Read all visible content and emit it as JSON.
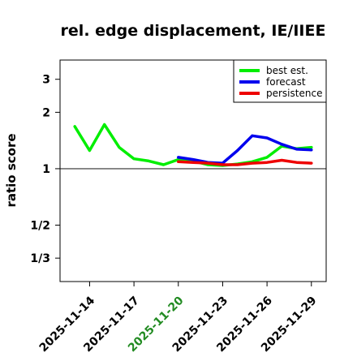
{
  "chart_data": {
    "type": "line",
    "title": "rel. edge displacement, IE/IIEE",
    "xlabel": "",
    "ylabel": "ratio score",
    "y_scale": "log",
    "yticks": [
      {
        "value": 0.3333,
        "label": "1/3"
      },
      {
        "value": 0.5,
        "label": "1/2"
      },
      {
        "value": 1,
        "label": "1"
      },
      {
        "value": 2,
        "label": "2"
      },
      {
        "value": 3,
        "label": "3"
      }
    ],
    "ylim": [
      0.25,
      3.8
    ],
    "xlim": [
      "2025-11-12",
      "2025-11-30"
    ],
    "xticks": [
      {
        "date": "2025-11-14",
        "label": "2025-11-14",
        "color": "#000000"
      },
      {
        "date": "2025-11-17",
        "label": "2025-11-17",
        "color": "#000000"
      },
      {
        "date": "2025-11-20",
        "label": "2025-11-20",
        "color": "#228B22"
      },
      {
        "date": "2025-11-23",
        "label": "2025-11-23",
        "color": "#000000"
      },
      {
        "date": "2025-11-26",
        "label": "2025-11-26",
        "color": "#000000"
      },
      {
        "date": "2025-11-29",
        "label": "2025-11-29",
        "color": "#000000"
      }
    ],
    "reference_line": 1,
    "grid": false,
    "legend_position": "top-right",
    "series": [
      {
        "name": "best est.",
        "color": "#00ee00",
        "points": [
          {
            "x": "2025-11-13",
            "y": 1.68
          },
          {
            "x": "2025-11-14",
            "y": 1.25
          },
          {
            "x": "2025-11-15",
            "y": 1.72
          },
          {
            "x": "2025-11-16",
            "y": 1.3
          },
          {
            "x": "2025-11-17",
            "y": 1.13
          },
          {
            "x": "2025-11-18",
            "y": 1.1
          },
          {
            "x": "2025-11-19",
            "y": 1.05
          },
          {
            "x": "2025-11-20",
            "y": 1.12
          },
          {
            "x": "2025-11-21",
            "y": 1.1
          },
          {
            "x": "2025-11-22",
            "y": 1.05
          },
          {
            "x": "2025-11-23",
            "y": 1.04
          },
          {
            "x": "2025-11-24",
            "y": 1.06
          },
          {
            "x": "2025-11-25",
            "y": 1.09
          },
          {
            "x": "2025-11-26",
            "y": 1.15
          },
          {
            "x": "2025-11-27",
            "y": 1.32
          },
          {
            "x": "2025-11-28",
            "y": 1.28
          },
          {
            "x": "2025-11-29",
            "y": 1.3
          }
        ]
      },
      {
        "name": "forecast",
        "color": "#0000ee",
        "points": [
          {
            "x": "2025-11-20",
            "y": 1.15
          },
          {
            "x": "2025-11-21",
            "y": 1.12
          },
          {
            "x": "2025-11-22",
            "y": 1.08
          },
          {
            "x": "2025-11-23",
            "y": 1.07
          },
          {
            "x": "2025-11-24",
            "y": 1.25
          },
          {
            "x": "2025-11-25",
            "y": 1.5
          },
          {
            "x": "2025-11-26",
            "y": 1.46
          },
          {
            "x": "2025-11-27",
            "y": 1.35
          },
          {
            "x": "2025-11-28",
            "y": 1.27
          },
          {
            "x": "2025-11-29",
            "y": 1.26
          }
        ]
      },
      {
        "name": "persistence",
        "color": "#ee0000",
        "points": [
          {
            "x": "2025-11-20",
            "y": 1.09
          },
          {
            "x": "2025-11-21",
            "y": 1.08
          },
          {
            "x": "2025-11-22",
            "y": 1.07
          },
          {
            "x": "2025-11-23",
            "y": 1.05
          },
          {
            "x": "2025-11-24",
            "y": 1.05
          },
          {
            "x": "2025-11-25",
            "y": 1.07
          },
          {
            "x": "2025-11-26",
            "y": 1.08
          },
          {
            "x": "2025-11-27",
            "y": 1.11
          },
          {
            "x": "2025-11-28",
            "y": 1.08
          },
          {
            "x": "2025-11-29",
            "y": 1.07
          }
        ]
      }
    ]
  }
}
